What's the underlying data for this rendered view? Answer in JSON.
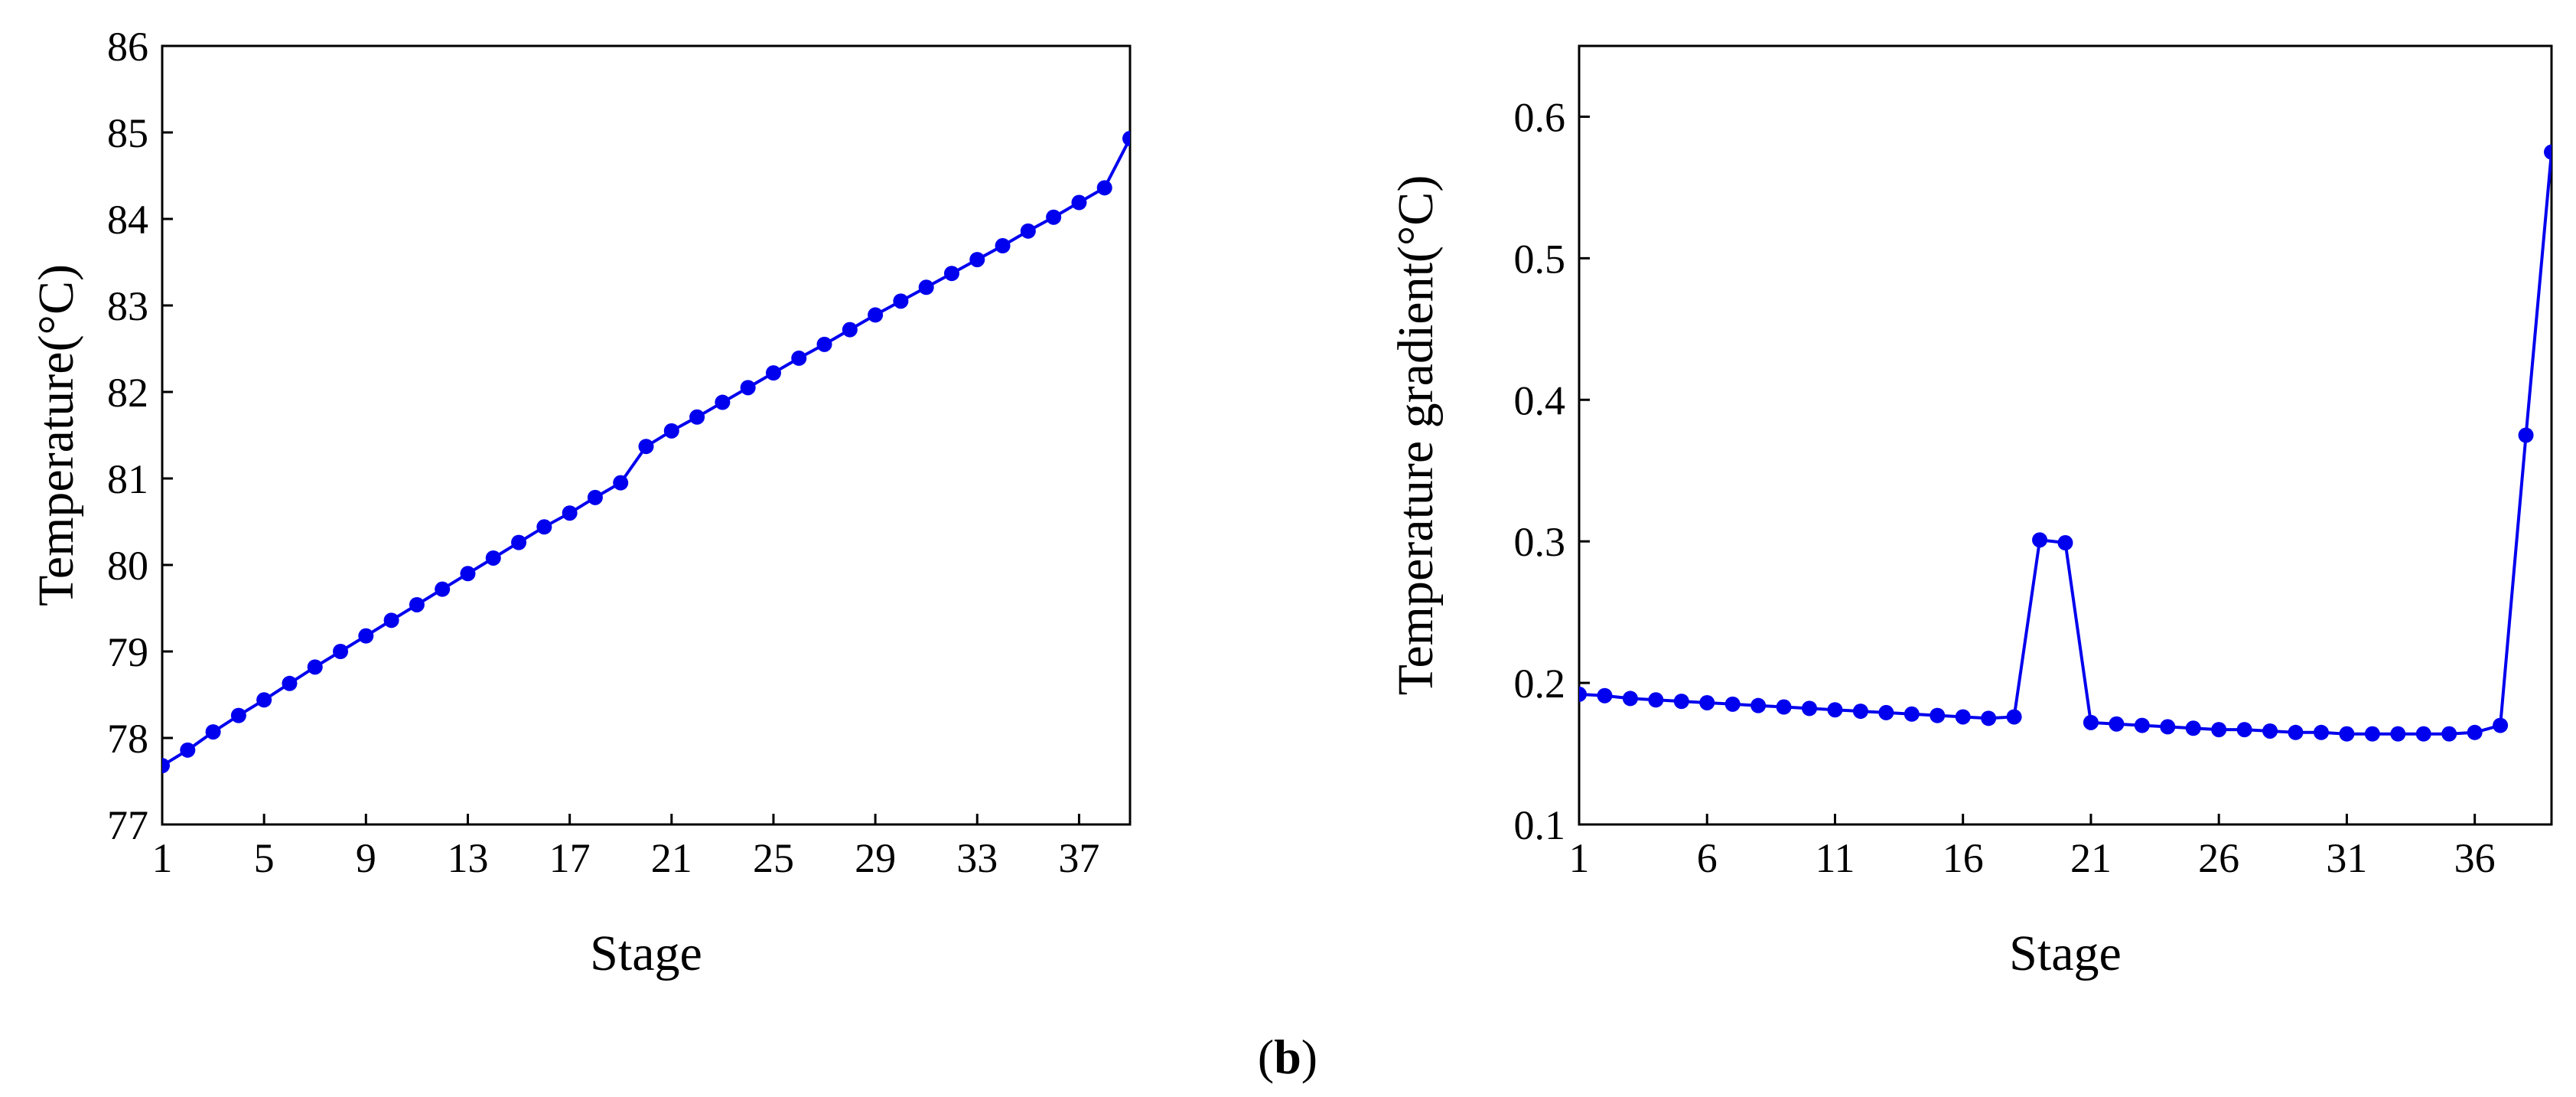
{
  "chart_data": [
    {
      "type": "line",
      "title": "",
      "xlabel": "Stage",
      "ylabel": "Temperature(°C)",
      "xlim": [
        1,
        39
      ],
      "ylim": [
        77,
        86
      ],
      "xticks": [
        1,
        5,
        9,
        13,
        17,
        21,
        25,
        29,
        33,
        37
      ],
      "yticks": [
        77,
        78,
        79,
        80,
        81,
        82,
        83,
        84,
        85,
        86
      ],
      "grid": false,
      "series": [
        {
          "name": "Temperature",
          "color": "#0000ee",
          "marker": "circle",
          "x": [
            1,
            2,
            3,
            4,
            5,
            6,
            7,
            8,
            9,
            10,
            11,
            12,
            13,
            14,
            15,
            16,
            17,
            18,
            19,
            20,
            21,
            22,
            23,
            24,
            25,
            26,
            27,
            28,
            29,
            30,
            31,
            32,
            33,
            34,
            35,
            36,
            37,
            38,
            39
          ],
          "values": [
            77.68,
            77.86,
            78.07,
            78.26,
            78.44,
            78.63,
            78.82,
            79.0,
            79.18,
            79.36,
            79.54,
            79.72,
            79.9,
            80.08,
            80.26,
            80.44,
            80.6,
            80.78,
            80.95,
            81.37,
            81.55,
            81.71,
            81.88,
            82.05,
            82.22,
            82.39,
            82.55,
            82.72,
            82.89,
            83.05,
            83.21,
            83.37,
            83.53,
            83.69,
            83.86,
            84.02,
            84.19,
            84.36,
            84.93
          ]
        }
      ]
    },
    {
      "type": "line",
      "title": "",
      "xlabel": "Stage",
      "ylabel": "Temperature gradient(°C)",
      "xlim": [
        1,
        39
      ],
      "ylim": [
        0.1,
        0.65
      ],
      "xticks": [
        1,
        6,
        11,
        16,
        21,
        26,
        31,
        36
      ],
      "yticks": [
        0.1,
        0.2,
        0.3,
        0.4,
        0.5,
        0.6
      ],
      "grid": false,
      "series": [
        {
          "name": "Temperature gradient",
          "color": "#0000ee",
          "marker": "circle",
          "x": [
            1,
            2,
            3,
            4,
            5,
            6,
            7,
            8,
            9,
            10,
            11,
            12,
            13,
            14,
            15,
            16,
            17,
            18,
            19,
            20,
            21,
            22,
            23,
            24,
            25,
            26,
            27,
            28,
            29,
            30,
            31,
            32,
            33,
            34,
            35,
            36,
            37,
            38,
            39
          ],
          "values": [
            0.192,
            0.191,
            0.189,
            0.188,
            0.187,
            0.186,
            0.185,
            0.184,
            0.183,
            0.182,
            0.181,
            0.18,
            0.179,
            0.178,
            0.177,
            0.176,
            0.175,
            0.176,
            0.301,
            0.299,
            0.172,
            0.171,
            0.17,
            0.169,
            0.168,
            0.167,
            0.167,
            0.166,
            0.165,
            0.165,
            0.164,
            0.164,
            0.164,
            0.164,
            0.164,
            0.165,
            0.17,
            0.375,
            0.575
          ]
        }
      ]
    }
  ],
  "caption": {
    "label": "(b)"
  }
}
